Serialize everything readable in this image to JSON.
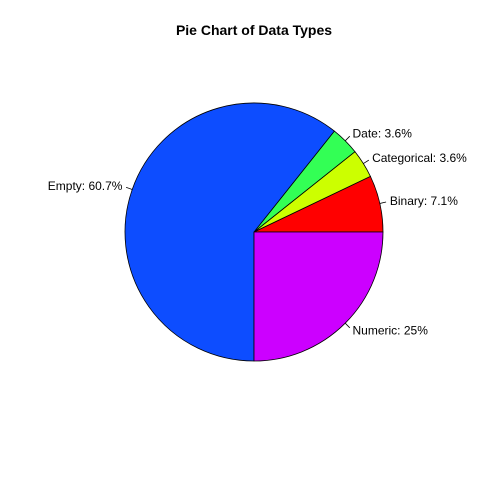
{
  "chart_data": {
    "type": "pie",
    "title": "Pie Chart of Data Types",
    "start_angle_deg": 0,
    "direction": "counterclockwise",
    "slices": [
      {
        "label": "Binary: 7.1%",
        "value": 7.1,
        "color": "#ff0000"
      },
      {
        "label": "Categorical: 3.6%",
        "value": 3.6,
        "color": "#ccff00"
      },
      {
        "label": "Date: 3.6%",
        "value": 3.6,
        "color": "#33ff55"
      },
      {
        "label": "Empty: 60.7%",
        "value": 60.7,
        "color": "#0d4dff"
      },
      {
        "label": "Numeric: 25%",
        "value": 25,
        "color": "#cc00ff"
      }
    ]
  }
}
